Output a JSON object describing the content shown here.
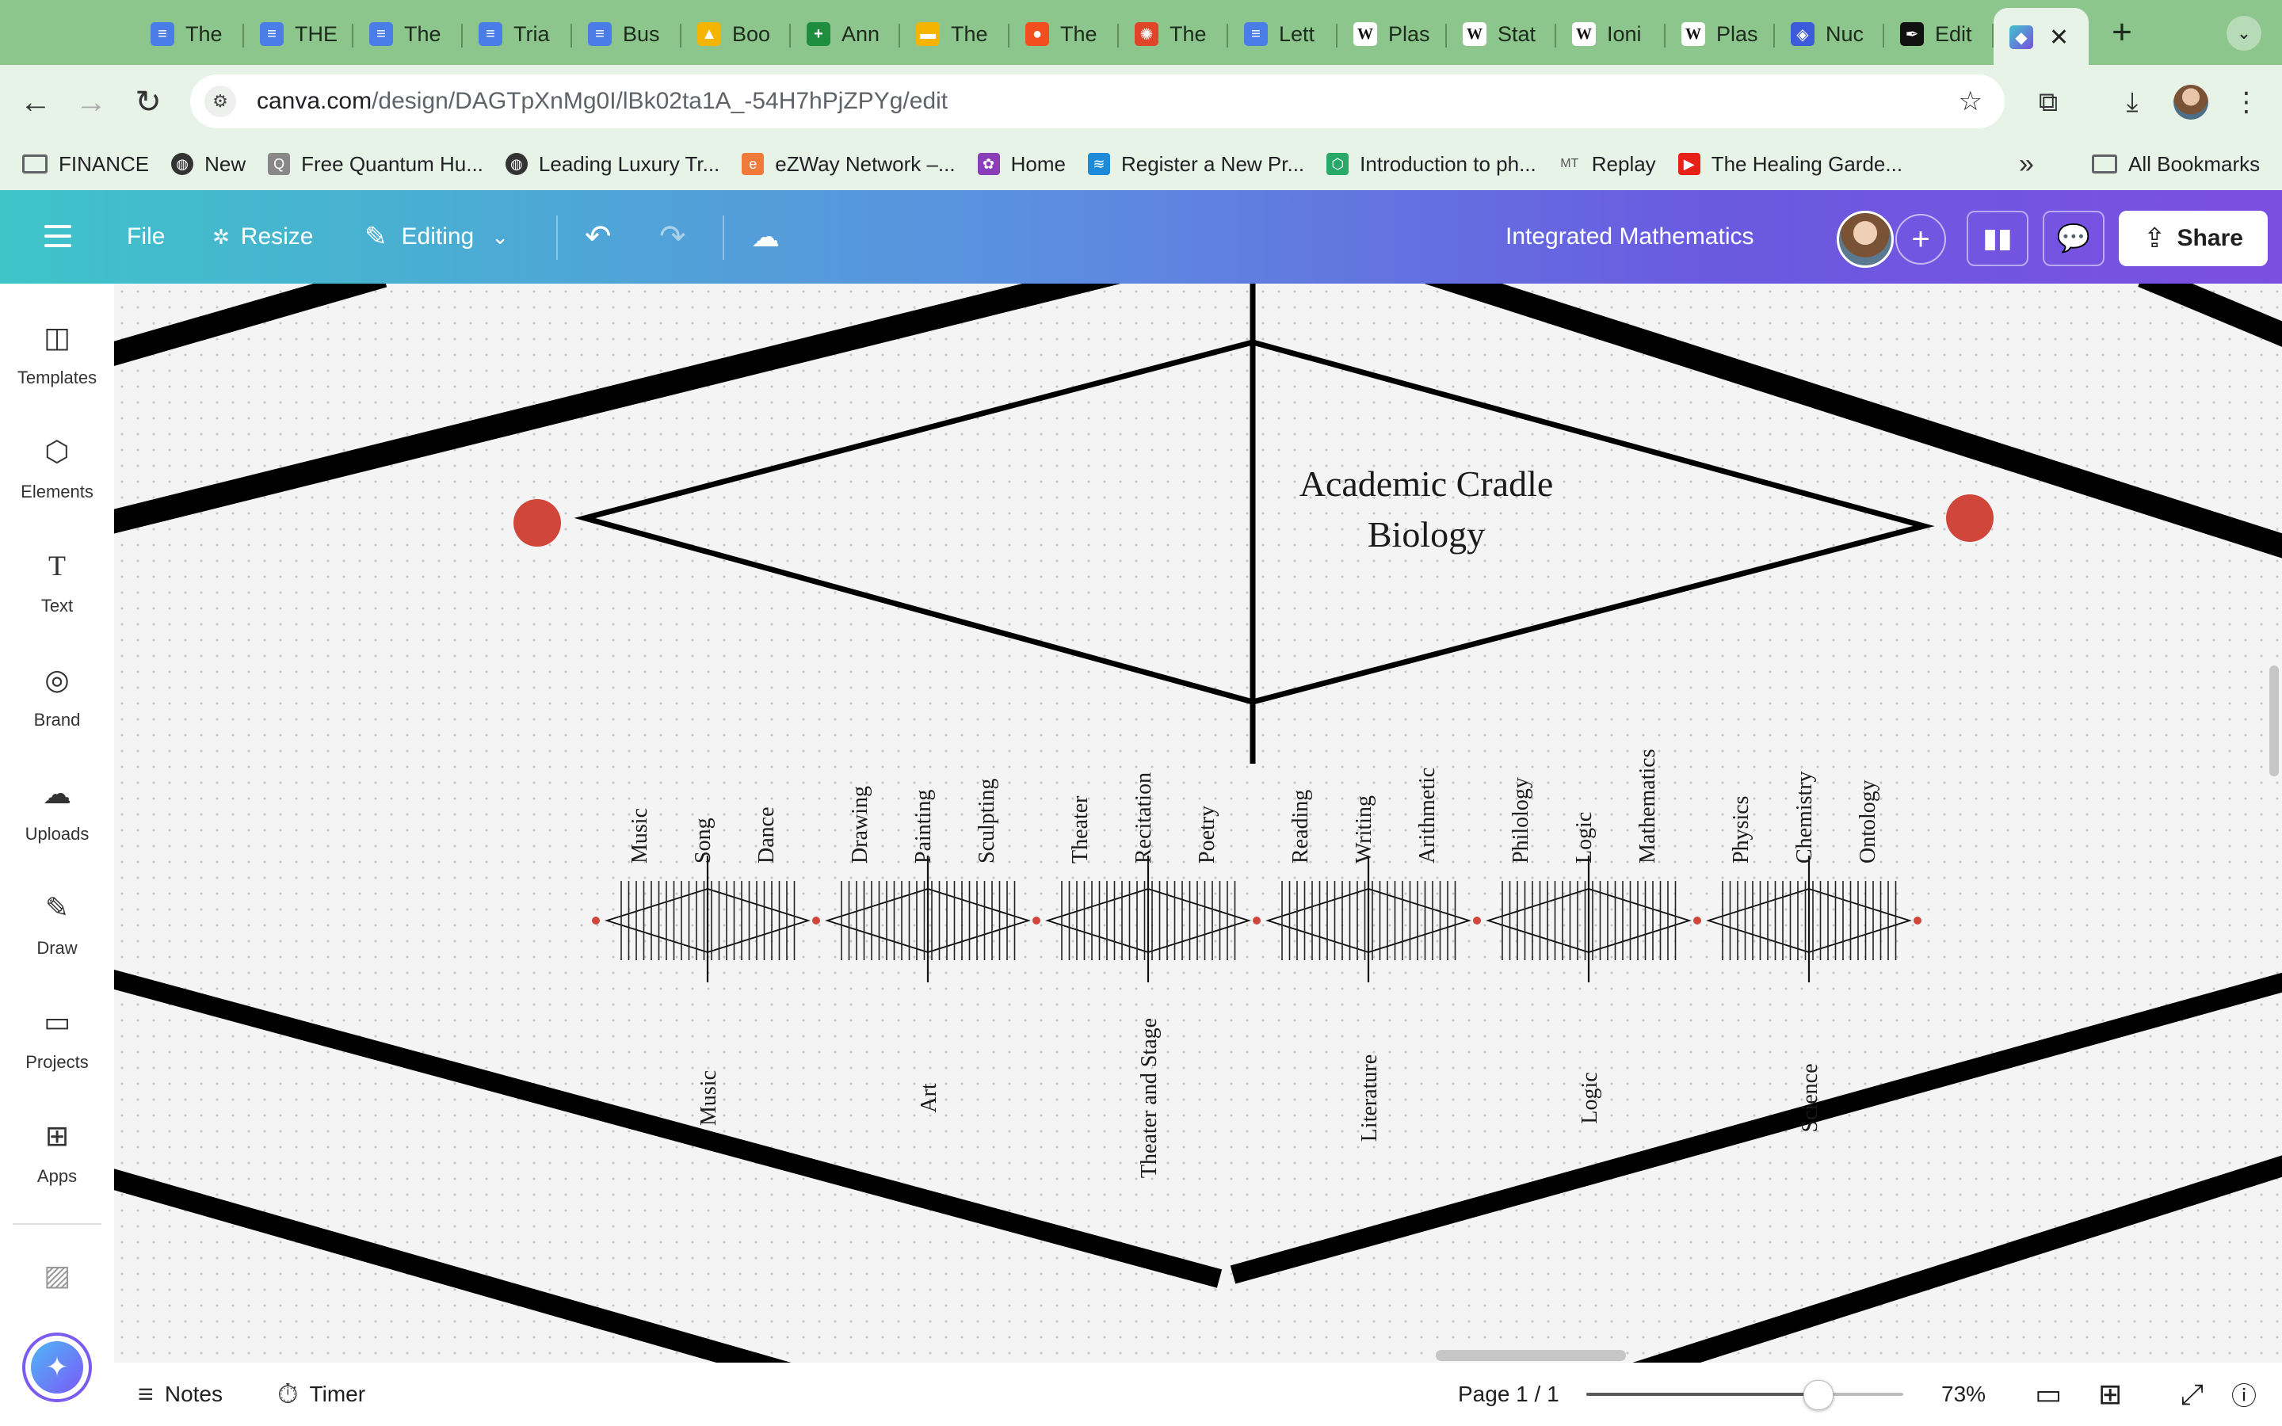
{
  "browser": {
    "tabs": [
      {
        "title": "The",
        "icon": "google-docs-icon",
        "color": "#4a7de8"
      },
      {
        "title": "THE",
        "icon": "google-docs-icon",
        "color": "#4a7de8"
      },
      {
        "title": "The",
        "icon": "google-docs-icon",
        "color": "#4a7de8"
      },
      {
        "title": "Tria",
        "icon": "google-docs-icon",
        "color": "#4a7de8"
      },
      {
        "title": "Bus",
        "icon": "google-docs-icon",
        "color": "#4a7de8"
      },
      {
        "title": "Boo",
        "icon": "google-drive-icon",
        "color": "#f4b400"
      },
      {
        "title": "Ann",
        "icon": "google-sheets-icon",
        "color": "#1e8e3e"
      },
      {
        "title": "The",
        "icon": "google-slides-icon",
        "color": "#f4b400"
      },
      {
        "title": "The",
        "icon": "figma-icon",
        "color": "#f24e1e"
      },
      {
        "title": "The",
        "icon": "pinwheel-icon",
        "color": "#e0452a"
      },
      {
        "title": "Lett",
        "icon": "google-docs-icon",
        "color": "#4a7de8"
      },
      {
        "title": "Plas",
        "icon": "wikipedia-icon",
        "color": "#ffffff"
      },
      {
        "title": "Stat",
        "icon": "wikipedia-icon",
        "color": "#ffffff"
      },
      {
        "title": "Ioni",
        "icon": "wikipedia-icon",
        "color": "#ffffff"
      },
      {
        "title": "Plas",
        "icon": "wikipedia-icon",
        "color": "#ffffff"
      },
      {
        "title": "Nuc",
        "icon": "shield-icon",
        "color": "#3b5bdb"
      },
      {
        "title": "Edit",
        "icon": "quill-icon",
        "color": "#111111"
      }
    ],
    "url_host": "canva.com",
    "url_path": "/design/DAGTpXnMg0I/lBk02ta1A_-54H7hPjZPYg/edit",
    "bookmarks": [
      {
        "label": "FINANCE",
        "icon": "folder-icon"
      },
      {
        "label": "New",
        "icon": "globe-icon"
      },
      {
        "label": "Free Quantum Hu...",
        "icon": "quantum-icon"
      },
      {
        "label": "Leading Luxury Tr...",
        "icon": "globe-icon"
      },
      {
        "label": "eZWay Network –...",
        "icon": "ezway-icon"
      },
      {
        "label": "Home",
        "icon": "lotus-icon"
      },
      {
        "label": "Register a New Pr...",
        "icon": "swirl-icon"
      },
      {
        "label": "Introduction to ph...",
        "icon": "hexagon-icon"
      },
      {
        "label": "Replay",
        "icon": "mt-icon"
      },
      {
        "label": "The Healing Garde...",
        "icon": "youtube-icon"
      }
    ],
    "all_bookmarks": "All Bookmarks"
  },
  "editor": {
    "menu": {
      "file": "File",
      "resize": "Resize",
      "editing": "Editing"
    },
    "doc_title": "Integrated Mathematics",
    "share": "Share",
    "accent": "#7b4fe0"
  },
  "sidebar": [
    {
      "label": "Templates",
      "icon": "templates-icon"
    },
    {
      "label": "Elements",
      "icon": "elements-icon"
    },
    {
      "label": "Text",
      "icon": "text-icon"
    },
    {
      "label": "Brand",
      "icon": "brand-icon"
    },
    {
      "label": "Uploads",
      "icon": "cloud-upload-icon"
    },
    {
      "label": "Draw",
      "icon": "pen-icon"
    },
    {
      "label": "Projects",
      "icon": "folder-icon"
    },
    {
      "label": "Apps",
      "icon": "apps-icon"
    }
  ],
  "canvas": {
    "center_title_line1": "Academic Cradle",
    "center_title_line2": "Biology",
    "dot_color": "#d0463b",
    "groups": [
      {
        "category": "Music",
        "subjects": [
          "Music",
          "Song",
          "Dance"
        ]
      },
      {
        "category": "Art",
        "subjects": [
          "Drawing",
          "Painting",
          "Sculpting"
        ]
      },
      {
        "category": "Theater and Stage",
        "subjects": [
          "Theater",
          "Recitation",
          "Poetry"
        ]
      },
      {
        "category": "Literature",
        "subjects": [
          "Reading",
          "Writing",
          "Arithmetic"
        ]
      },
      {
        "category": "Logic",
        "subjects": [
          "Philology",
          "Logic",
          "Mathematics"
        ]
      },
      {
        "category": "Science",
        "subjects": [
          "Physics",
          "Chemistry",
          "Ontology"
        ]
      }
    ]
  },
  "bottom": {
    "notes": "Notes",
    "timer": "Timer",
    "page": "Page 1 / 1",
    "zoom": "73%",
    "zoom_fraction": 0.73
  }
}
